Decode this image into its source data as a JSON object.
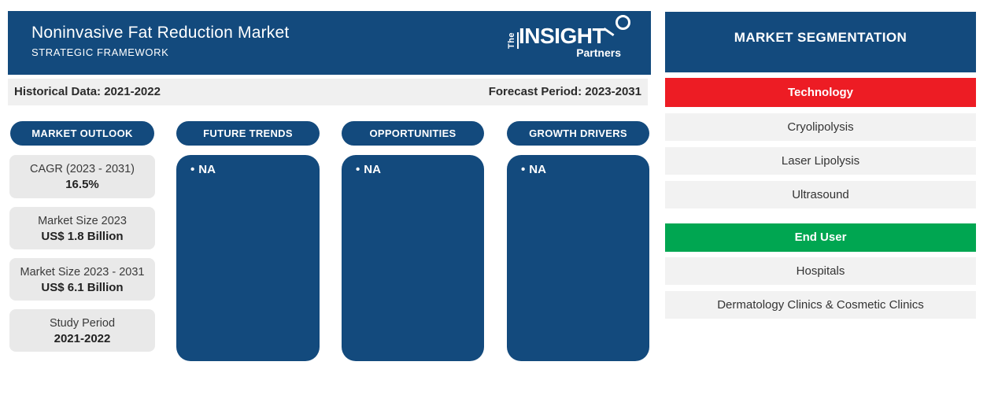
{
  "header": {
    "title": "Noninvasive Fat Reduction Market",
    "subtitle": "STRATEGIC FRAMEWORK",
    "logo": {
      "prefix": "The",
      "name": "INSIGHT",
      "suffix": "Partners"
    }
  },
  "info_bar": {
    "historical": "Historical Data: 2021-2022",
    "forecast": "Forecast Period: 2023-2031"
  },
  "market_outlook": {
    "label": "MARKET OUTLOOK",
    "stats": [
      {
        "label": "CAGR (2023 - 2031)",
        "value": "16.5%"
      },
      {
        "label": "Market Size 2023",
        "value": "US$ 1.8 Billion"
      },
      {
        "label": "Market Size 2023 - 2031",
        "value": "US$ 6.1 Billion"
      },
      {
        "label": "Study Period",
        "value": "2021-2022"
      }
    ]
  },
  "panels": [
    {
      "label": "FUTURE TRENDS",
      "bullet": "•",
      "content": "NA"
    },
    {
      "label": "OPPORTUNITIES",
      "bullet": "•",
      "content": "NA"
    },
    {
      "label": "GROWTH DRIVERS",
      "bullet": "•",
      "content": "NA"
    }
  ],
  "segmentation": {
    "title": "MARKET SEGMENTATION",
    "groups": [
      {
        "label": "Technology",
        "color": "#ED1C24",
        "items": [
          "Cryolipolysis",
          "Laser Lipolysis",
          "Ultrasound"
        ]
      },
      {
        "label": "End User",
        "color": "#00A651",
        "items": [
          "Hospitals",
          "Dermatology Clinics & Cosmetic Clinics"
        ]
      }
    ]
  },
  "colors": {
    "primary_blue": "#134A7D",
    "accent_red": "#ED1C24",
    "accent_green": "#00A651",
    "info_bar_gray": "#F0F0F0",
    "stat_box_gray": "#E9E9E9",
    "segment_item_gray": "#F2F2F2"
  }
}
